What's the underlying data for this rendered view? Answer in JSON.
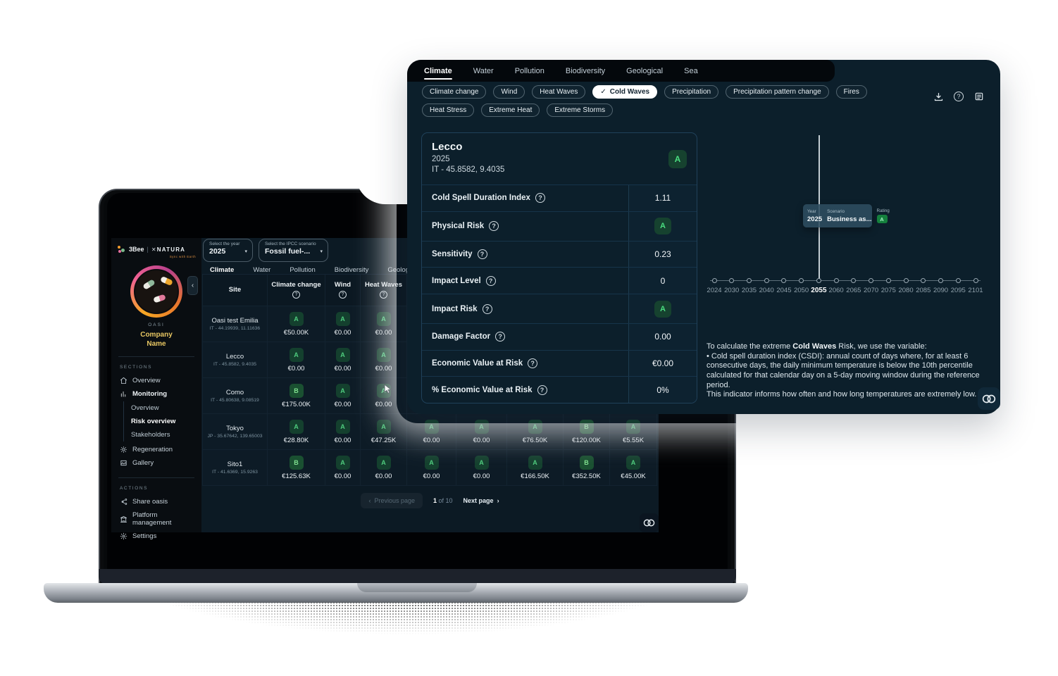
{
  "colors": {
    "accent_green": "#4ade80",
    "badge_bg": "#14402e",
    "company_name_yellow": "#e7c662",
    "panel_bg": "#0c1f2b",
    "selected_chip_bg": "#ffffff"
  },
  "icons": {
    "help_glyph": "?",
    "check_glyph": "✓",
    "chevron_left": "‹",
    "chevron_right": "›",
    "caret_down": "▾"
  },
  "laptop": {
    "sidebar": {
      "brand_left": "3Bee",
      "brand_x": "✕",
      "brand_right": "NATURA",
      "brand_tagline": "Sync with Earth",
      "oasi_label": "OASI",
      "company_name": "Company Name",
      "sections_label": "SECTIONS",
      "sections": [
        {
          "label": "Overview",
          "icon": "home-icon",
          "children": []
        },
        {
          "label": "Monitoring",
          "icon": "monitoring-icon",
          "semi": true,
          "children": [
            {
              "label": "Overview",
              "active": false
            },
            {
              "label": "Risk overview",
              "active": true
            },
            {
              "label": "Stakeholders",
              "active": false
            }
          ]
        },
        {
          "label": "Regeneration",
          "icon": "sun-icon",
          "children": []
        },
        {
          "label": "Gallery",
          "icon": "image-icon",
          "children": []
        }
      ],
      "actions_label": "ACTIONS",
      "actions": [
        {
          "label": "Share oasis",
          "icon": "share-icon"
        },
        {
          "label": "Platform management",
          "icon": "building-icon"
        },
        {
          "label": "Settings",
          "icon": "gear-icon"
        }
      ]
    },
    "filters": {
      "year_select": {
        "label": "Select the year",
        "value": "2025"
      },
      "scenario_select": {
        "label": "Select the IPCC scenario",
        "value": "Fossil fuel-..."
      }
    },
    "tabs": [
      "Climate",
      "Water",
      "Pollution",
      "Biodiversity",
      "Geological",
      "Sea"
    ],
    "active_tab": "Climate",
    "table": {
      "headers": [
        {
          "label": "Site",
          "help": false
        },
        {
          "label": "Climate change",
          "help": true
        },
        {
          "label": "Wind",
          "help": true
        },
        {
          "label": "Heat Waves",
          "help": true
        },
        {
          "label": "",
          "help": false
        },
        {
          "label": "",
          "help": false
        },
        {
          "label": "",
          "help": false
        },
        {
          "label": "",
          "help": false
        },
        {
          "label": "",
          "help": false
        }
      ],
      "rows": [
        {
          "site": "Oasi test Emilia",
          "coords": "IT - 44.19939, 11.11636",
          "cells": [
            {
              "rating": "A",
              "value": "€50.00K"
            },
            {
              "rating": "A",
              "value": "€0.00"
            },
            {
              "rating": "A",
              "value": "€0.00"
            },
            null,
            null,
            null,
            null,
            null
          ]
        },
        {
          "site": "Lecco",
          "coords": "IT - 45.8582, 9.4035",
          "cells": [
            {
              "rating": "A",
              "value": "€0.00"
            },
            {
              "rating": "A",
              "value": "€0.00"
            },
            {
              "rating": "A",
              "value": "€0.00"
            },
            null,
            null,
            null,
            null,
            null
          ]
        },
        {
          "site": "Como",
          "coords": "IT - 45.80638, 9.08519",
          "cells": [
            {
              "rating": "B",
              "value": "€175.00K"
            },
            {
              "rating": "A",
              "value": "€0.00"
            },
            {
              "rating": "A",
              "value": "€0.00",
              "cursor": true
            },
            null,
            null,
            null,
            null,
            null
          ]
        },
        {
          "site": "Tokyo",
          "coords": "JP - 35.67642, 139.65003",
          "cells": [
            {
              "rating": "A",
              "value": "€28.80K"
            },
            {
              "rating": "A",
              "value": "€0.00"
            },
            {
              "rating": "A",
              "value": "€47.25K"
            },
            {
              "rating": "A",
              "value": "€0.00"
            },
            {
              "rating": "A",
              "value": "€0.00"
            },
            {
              "rating": "A",
              "value": "€76.50K"
            },
            {
              "rating": "B",
              "value": "€120.00K"
            },
            {
              "rating": "A",
              "value": "€5.55K"
            }
          ]
        },
        {
          "site": "Sito1",
          "coords": "IT - 41.6369, 15.9263",
          "cells": [
            {
              "rating": "B",
              "value": "€125.63K"
            },
            {
              "rating": "A",
              "value": "€0.00"
            },
            {
              "rating": "A",
              "value": "€0.00"
            },
            {
              "rating": "A",
              "value": "€0.00"
            },
            {
              "rating": "A",
              "value": "€0.00"
            },
            {
              "rating": "A",
              "value": "€166.50K"
            },
            {
              "rating": "B",
              "value": "€352.50K"
            },
            {
              "rating": "A",
              "value": "€45.00K"
            }
          ]
        }
      ]
    },
    "pagination": {
      "prev": "Previous page",
      "current": "1",
      "of": "of 10",
      "next": "Next page"
    }
  },
  "panel": {
    "tabs": [
      "Climate",
      "Water",
      "Pollution",
      "Biodiversity",
      "Geological",
      "Sea"
    ],
    "active_tab": "Climate",
    "chips": [
      {
        "label": "Climate change",
        "selected": false
      },
      {
        "label": "Wind",
        "selected": false
      },
      {
        "label": "Heat Waves",
        "selected": false
      },
      {
        "label": "Cold Waves",
        "selected": true
      },
      {
        "label": "Precipitation",
        "selected": false
      },
      {
        "label": "Precipitation pattern change",
        "selected": false
      },
      {
        "label": "Fires",
        "selected": false
      },
      {
        "label": "Heat Stress",
        "selected": false
      },
      {
        "label": "Extreme Heat",
        "selected": false
      },
      {
        "label": "Extreme Storms",
        "selected": false
      }
    ],
    "toolbar": [
      "download-icon",
      "help-icon",
      "report-icon"
    ],
    "card": {
      "title": "Lecco",
      "year": "2025",
      "location": "IT - 45.8582, 9.4035",
      "rating": "A",
      "rows": [
        {
          "label": "Cold Spell Duration Index",
          "value": "1.11",
          "type": "text"
        },
        {
          "label": "Physical Risk",
          "value": "A",
          "type": "badge"
        },
        {
          "label": "Sensitivity",
          "value": "0.23",
          "type": "text"
        },
        {
          "label": "Impact Level",
          "value": "0",
          "type": "text"
        },
        {
          "label": "Impact Risk",
          "value": "A",
          "type": "badge"
        },
        {
          "label": "Damage Factor",
          "value": "0.00",
          "type": "text"
        },
        {
          "label": "Economic Value at Risk",
          "value": "€0.00",
          "type": "text"
        },
        {
          "label": "% Economic Value at Risk",
          "value": "0%",
          "type": "text"
        }
      ]
    },
    "chart_data": {
      "type": "line",
      "title": "",
      "xlabel": "Year",
      "x_ticks": [
        "2024",
        "2030",
        "2035",
        "2040",
        "2045",
        "2050",
        "2055",
        "2060",
        "2065",
        "2070",
        "2075",
        "2080",
        "2085",
        "2090",
        "2095",
        "2101"
      ],
      "selected_tick": "2055",
      "marker_year": "2055",
      "grid": false,
      "tooltip": {
        "year_label": "Year",
        "year": "2025",
        "scenario_label": "Scenario",
        "scenario": "Business as...",
        "rating_label": "Rating",
        "rating": "A"
      }
    },
    "description": {
      "pre": "To calculate the extreme ",
      "bold": "Cold Waves",
      "post": " Risk, we use the variable:",
      "bullet": "• Cold spell duration index (CSDI): annual count of days where, for at least 6 consecutive days, the daily minimum temperature is below the 10th percentile calculated for that calendar day on a 5-day moving window during the reference period.",
      "footer": "This indicator informs how often and how long temperatures are extremely low."
    }
  }
}
